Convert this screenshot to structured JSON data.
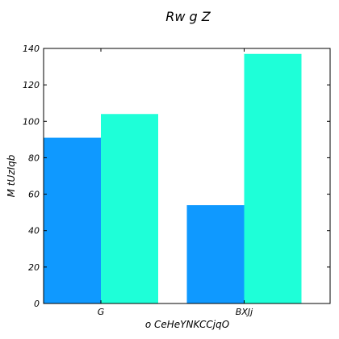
{
  "chart_data": {
    "type": "bar",
    "title": "Rw g Z",
    "xlabel": "o CeHeYNKCCjqO",
    "ylabel": "M tUzIqb",
    "categories": [
      "G",
      "BXJj"
    ],
    "series": [
      {
        "color": "#0f99ff",
        "values": [
          91,
          54
        ]
      },
      {
        "color": "#1effd8",
        "values": [
          104,
          137
        ]
      }
    ],
    "ylim": [
      0,
      140
    ],
    "yticks": [
      0,
      20,
      40,
      60,
      80,
      100,
      120,
      140
    ],
    "grid": false,
    "legend": "none"
  }
}
